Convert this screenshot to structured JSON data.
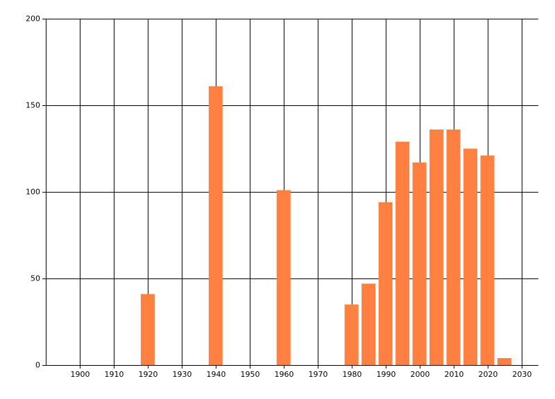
{
  "chart_data": {
    "type": "bar",
    "x": [
      1920,
      1940,
      1960,
      1980,
      1985,
      1990,
      1995,
      2000,
      2005,
      2010,
      2015,
      2020,
      2025
    ],
    "values": [
      41,
      161,
      101,
      35,
      47,
      94,
      129,
      117,
      136,
      136,
      125,
      121,
      4
    ],
    "color": "#ff8040",
    "xlim": [
      1890,
      2035
    ],
    "xticks": [
      1900,
      1910,
      1920,
      1930,
      1940,
      1950,
      1960,
      1970,
      1980,
      1990,
      2000,
      2010,
      2020,
      2030
    ],
    "ylim": [
      0,
      200
    ],
    "yticks": [
      0,
      50,
      100,
      150,
      200
    ],
    "grid": true
  }
}
